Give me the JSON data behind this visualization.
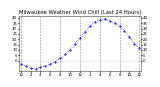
{
  "title": "Milwaukee Weather Wind Chill (Last 24 Hours)",
  "x_values": [
    0,
    1,
    2,
    3,
    4,
    5,
    6,
    7,
    8,
    9,
    10,
    11,
    12,
    13,
    14,
    15,
    16,
    17,
    18,
    19,
    20,
    21,
    22,
    23,
    24
  ],
  "y_values": [
    -3,
    -5,
    -7,
    -8,
    -6,
    -5,
    -3,
    -1,
    2,
    6,
    10,
    16,
    21,
    27,
    32,
    36,
    38,
    39,
    37,
    35,
    32,
    28,
    22,
    16,
    12
  ],
  "line_color": "#0000cc",
  "marker_color": "#0000cc",
  "bg_color": "#ffffff",
  "grid_color": "#888888",
  "title_color": "#000000",
  "ylim": [
    -10,
    42
  ],
  "yticks": [
    0,
    5,
    10,
    15,
    20,
    25,
    30,
    35,
    40
  ],
  "xlim": [
    -0.3,
    24.3
  ],
  "xtick_positions": [
    0,
    2,
    4,
    6,
    8,
    10,
    12,
    14,
    16,
    18,
    20,
    22,
    24
  ],
  "xtick_labels": [
    "12",
    "2",
    "4",
    "6",
    "8",
    "10",
    "12",
    "2",
    "4",
    "6",
    "8",
    "10",
    "12"
  ],
  "grid_positions": [
    0,
    4,
    8,
    12,
    16,
    20,
    24
  ],
  "title_fontsize": 3.8,
  "tick_fontsize": 2.8,
  "line_width": 0.5,
  "marker_size": 1.0
}
